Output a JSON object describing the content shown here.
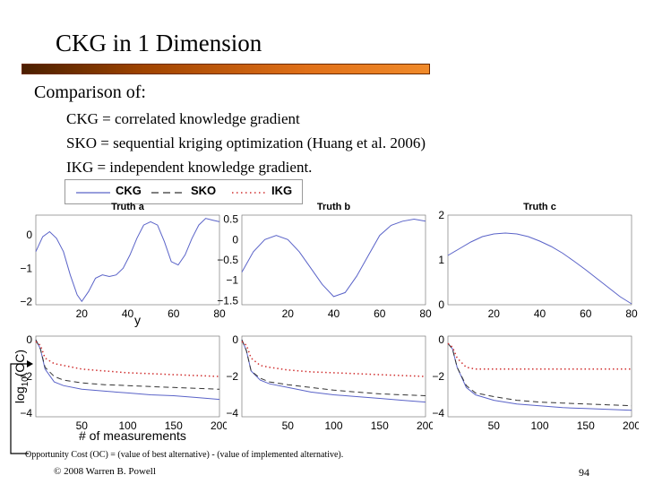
{
  "slide": {
    "title": "CKG in 1 Dimension",
    "heading": "Comparison of:",
    "lines": [
      "CKG = correlated knowledge gradient",
      "SKO = sequential kriging optimization (Huang et al. 2006)",
      "IKG = independent knowledge gradient."
    ],
    "y_small_label": "y",
    "ylabel_main": "log",
    "ylabel_sub": "10",
    "ylabel_tail": "(OC)",
    "xlabel_bottom": "# of measurements",
    "footnote": "Opportunity Cost (OC) = (value of best alternative) - (value of implemented alternative).",
    "copyright": "© 2008 Warren B. Powell",
    "page_number": "94"
  },
  "colors": {
    "title_bar": "#e07018",
    "ckg": "#5a63c8",
    "sko": "#333333",
    "ikg": "#d03030"
  },
  "legend": [
    {
      "name": "CKG",
      "style": "solid"
    },
    {
      "name": "SKO",
      "style": "dashed"
    },
    {
      "name": "IKG",
      "style": "dotted"
    }
  ],
  "chart_data": [
    {
      "type": "line",
      "title": "Truth a",
      "xlim": [
        0,
        80
      ],
      "ylim": [
        -2.1,
        0.6
      ],
      "xticks": [
        "20",
        "40",
        "60",
        "80"
      ],
      "yticks": [
        "0",
        "−1",
        "−2"
      ],
      "series": [
        {
          "name": "",
          "x": [
            0,
            3,
            6,
            9,
            12,
            15,
            18,
            20,
            23,
            26,
            29,
            32,
            35,
            38,
            41,
            44,
            47,
            50,
            53,
            56,
            59,
            62,
            65,
            68,
            71,
            74,
            77,
            80
          ],
          "y": [
            -0.5,
            -0.05,
            0.1,
            -0.1,
            -0.5,
            -1.2,
            -1.8,
            -2.0,
            -1.7,
            -1.3,
            -1.2,
            -1.25,
            -1.2,
            -1.0,
            -0.6,
            -0.1,
            0.3,
            0.4,
            0.3,
            -0.2,
            -0.8,
            -0.9,
            -0.6,
            -0.1,
            0.3,
            0.5,
            0.45,
            0.4
          ]
        }
      ]
    },
    {
      "type": "line",
      "title": "Truth b",
      "xlim": [
        0,
        80
      ],
      "ylim": [
        -1.6,
        0.6
      ],
      "xticks": [
        "20",
        "40",
        "60",
        "80"
      ],
      "yticks": [
        "0.5",
        "0",
        "−0.5",
        "−1",
        "−1.5"
      ],
      "series": [
        {
          "name": "",
          "x": [
            0,
            5,
            10,
            15,
            20,
            25,
            30,
            35,
            40,
            45,
            50,
            55,
            60,
            65,
            70,
            75,
            80
          ],
          "y": [
            -0.8,
            -0.3,
            0.0,
            0.1,
            0.0,
            -0.3,
            -0.7,
            -1.1,
            -1.4,
            -1.3,
            -0.9,
            -0.4,
            0.1,
            0.35,
            0.45,
            0.5,
            0.45
          ]
        }
      ]
    },
    {
      "type": "line",
      "title": "Truth c",
      "xlim": [
        0,
        80
      ],
      "ylim": [
        0,
        2
      ],
      "xticks": [
        "20",
        "40",
        "60",
        "80"
      ],
      "yticks": [
        "2",
        "1",
        "0"
      ],
      "series": [
        {
          "name": "",
          "x": [
            0,
            5,
            10,
            15,
            20,
            25,
            30,
            35,
            40,
            45,
            50,
            55,
            60,
            65,
            70,
            75,
            80
          ],
          "y": [
            1.1,
            1.25,
            1.4,
            1.52,
            1.58,
            1.6,
            1.58,
            1.52,
            1.42,
            1.3,
            1.15,
            0.97,
            0.78,
            0.58,
            0.38,
            0.18,
            0.02
          ]
        }
      ]
    },
    {
      "type": "line",
      "title": "",
      "xlim": [
        0,
        200
      ],
      "ylim": [
        -4.2,
        0.2
      ],
      "xticks": [
        "50",
        "100",
        "150",
        "200"
      ],
      "yticks": [
        "0",
        "−2",
        "−4"
      ],
      "series": [
        {
          "name": "CKG",
          "x": [
            0,
            5,
            10,
            20,
            30,
            50,
            75,
            100,
            125,
            150,
            175,
            200
          ],
          "y": [
            0,
            -0.5,
            -1.6,
            -2.3,
            -2.5,
            -2.7,
            -2.8,
            -2.9,
            -3.0,
            -3.05,
            -3.15,
            -3.25
          ]
        },
        {
          "name": "SKO",
          "x": [
            0,
            5,
            10,
            20,
            30,
            50,
            75,
            100,
            125,
            150,
            175,
            200
          ],
          "y": [
            0,
            -0.5,
            -1.5,
            -2.0,
            -2.2,
            -2.35,
            -2.45,
            -2.5,
            -2.55,
            -2.6,
            -2.65,
            -2.7
          ]
        },
        {
          "name": "IKG",
          "x": [
            0,
            5,
            10,
            20,
            30,
            50,
            75,
            100,
            125,
            150,
            175,
            200
          ],
          "y": [
            -0.1,
            -0.3,
            -1.0,
            -1.3,
            -1.4,
            -1.6,
            -1.7,
            -1.8,
            -1.85,
            -1.9,
            -1.95,
            -2.0
          ]
        }
      ]
    },
    {
      "type": "line",
      "title": "",
      "xlim": [
        0,
        200
      ],
      "ylim": [
        -4.2,
        0.2
      ],
      "xticks": [
        "50",
        "100",
        "150",
        "200"
      ],
      "yticks": [
        "0",
        "−2",
        "−4"
      ],
      "series": [
        {
          "name": "CKG",
          "x": [
            0,
            5,
            10,
            20,
            30,
            50,
            75,
            100,
            125,
            150,
            175,
            200
          ],
          "y": [
            0,
            -0.6,
            -1.7,
            -2.2,
            -2.4,
            -2.6,
            -2.85,
            -3.0,
            -3.1,
            -3.2,
            -3.3,
            -3.4
          ]
        },
        {
          "name": "SKO",
          "x": [
            0,
            5,
            10,
            20,
            30,
            50,
            75,
            100,
            125,
            150,
            175,
            200
          ],
          "y": [
            0,
            -0.6,
            -1.7,
            -2.1,
            -2.3,
            -2.45,
            -2.6,
            -2.75,
            -2.85,
            -2.95,
            -3.0,
            -3.05
          ]
        },
        {
          "name": "IKG",
          "x": [
            0,
            5,
            10,
            20,
            30,
            50,
            75,
            100,
            125,
            150,
            175,
            200
          ],
          "y": [
            -0.1,
            -0.3,
            -1.0,
            -1.4,
            -1.5,
            -1.65,
            -1.75,
            -1.8,
            -1.85,
            -1.9,
            -1.95,
            -2.0
          ]
        }
      ]
    },
    {
      "type": "line",
      "title": "",
      "xlim": [
        0,
        200
      ],
      "ylim": [
        -4.2,
        0.2
      ],
      "xticks": [
        "50",
        "100",
        "150",
        "200"
      ],
      "yticks": [
        "0",
        "−2",
        "−4"
      ],
      "series": [
        {
          "name": "CKG",
          "x": [
            0,
            5,
            10,
            20,
            30,
            50,
            75,
            100,
            125,
            150,
            175,
            200
          ],
          "y": [
            -0.2,
            -0.5,
            -1.5,
            -2.6,
            -3.0,
            -3.3,
            -3.5,
            -3.6,
            -3.7,
            -3.75,
            -3.8,
            -3.85
          ]
        },
        {
          "name": "SKO",
          "x": [
            0,
            5,
            10,
            20,
            30,
            50,
            75,
            100,
            125,
            150,
            175,
            200
          ],
          "y": [
            -0.2,
            -0.5,
            -1.5,
            -2.5,
            -2.9,
            -3.1,
            -3.3,
            -3.4,
            -3.45,
            -3.5,
            -3.55,
            -3.6
          ]
        },
        {
          "name": "IKG",
          "x": [
            0,
            5,
            10,
            20,
            30,
            50,
            75,
            100,
            125,
            150,
            175,
            200
          ],
          "y": [
            -0.2,
            -0.4,
            -1.0,
            -1.5,
            -1.6,
            -1.6,
            -1.6,
            -1.6,
            -1.6,
            -1.6,
            -1.6,
            -1.6
          ]
        }
      ]
    }
  ]
}
